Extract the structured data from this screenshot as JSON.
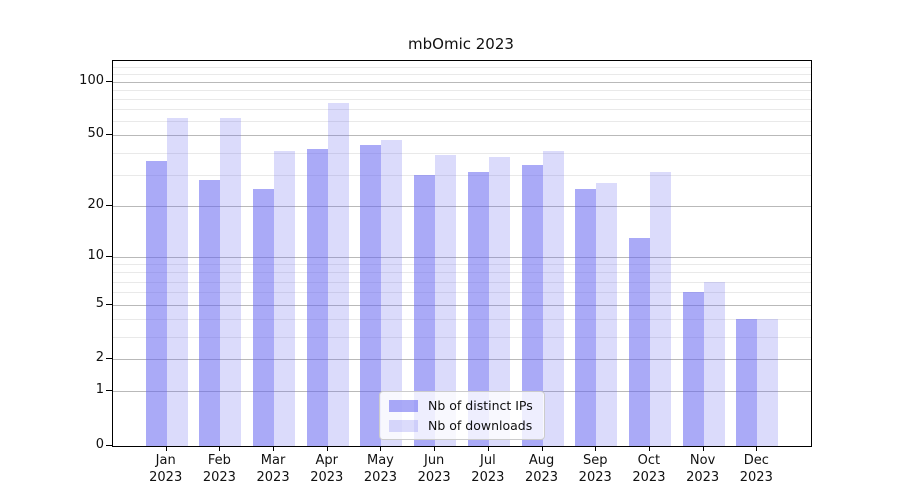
{
  "chart_data": {
    "type": "bar",
    "title": "mbOmic 2023",
    "categories": [
      "Jan",
      "Feb",
      "Mar",
      "Apr",
      "May",
      "Jun",
      "Jul",
      "Aug",
      "Sep",
      "Oct",
      "Nov",
      "Dec"
    ],
    "category_year": "2023",
    "series": [
      {
        "name": "Nb of distinct IPs",
        "color": "rgba(100,100,240,0.55)",
        "values": [
          36,
          28,
          25,
          42,
          44,
          30,
          31,
          34,
          25,
          13,
          6,
          4
        ]
      },
      {
        "name": "Nb of downloads",
        "color": "rgba(100,100,240,0.235)",
        "values": [
          63,
          63,
          41,
          76,
          47,
          39,
          38,
          41,
          27,
          31,
          7,
          4
        ]
      }
    ],
    "y_scale": "log1p",
    "y_ticks": [
      0,
      1,
      2,
      5,
      10,
      20,
      50,
      100
    ],
    "y_minor_gridlines": [
      3,
      4,
      6,
      7,
      8,
      9,
      30,
      40,
      60,
      70,
      80,
      90,
      110,
      120
    ],
    "ylim": [
      0,
      130
    ],
    "xlabel": "",
    "ylabel": "",
    "grid": true,
    "legend_position": "bottom-center"
  },
  "colors": {
    "major_grid": "#b9b9b9",
    "minor_grid": "#e9e9e9",
    "axis": "#000000",
    "legend_bg": "rgba(255,255,255,0.8)",
    "legend_border": "#cccccc",
    "bar_dark": "rgba(100,100,240,0.55)",
    "bar_light": "rgba(100,100,240,0.235)"
  }
}
